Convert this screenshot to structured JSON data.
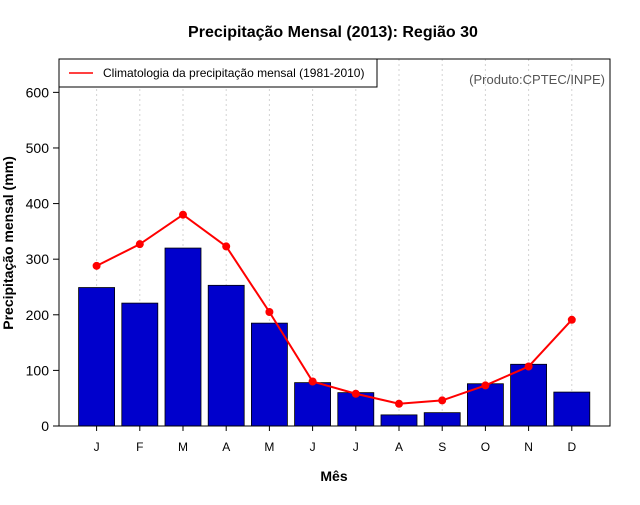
{
  "chart_data": {
    "type": "bar",
    "title": "Precipitação Mensal (2013): Região 30",
    "xlabel": "Mês",
    "ylabel": "Precipitação mensal (mm)",
    "categories": [
      "J",
      "F",
      "M",
      "A",
      "M",
      "J",
      "J",
      "A",
      "S",
      "O",
      "N",
      "D"
    ],
    "ylim": [
      0,
      660
    ],
    "yticks": [
      0,
      100,
      200,
      300,
      400,
      500,
      600
    ],
    "grid": "vertical-dotted",
    "series": [
      {
        "name": "Precipitação mensal 2013",
        "type": "bar",
        "color": "#0000cc",
        "values": [
          249,
          221,
          320,
          253,
          185,
          78,
          60,
          20,
          24,
          76,
          111,
          61
        ]
      },
      {
        "name": "Climatologia da precipitação mensal (1981-2010)",
        "type": "line",
        "color": "#ff0000",
        "values": [
          288,
          327,
          380,
          323,
          205,
          80,
          58,
          40,
          46,
          73,
          107,
          191
        ]
      }
    ],
    "legend": {
      "position": "top-left",
      "entries": [
        "Climatologia da precipitação mensal (1981-2010)"
      ]
    },
    "annotation": "(Produto:CPTEC/INPE)"
  }
}
